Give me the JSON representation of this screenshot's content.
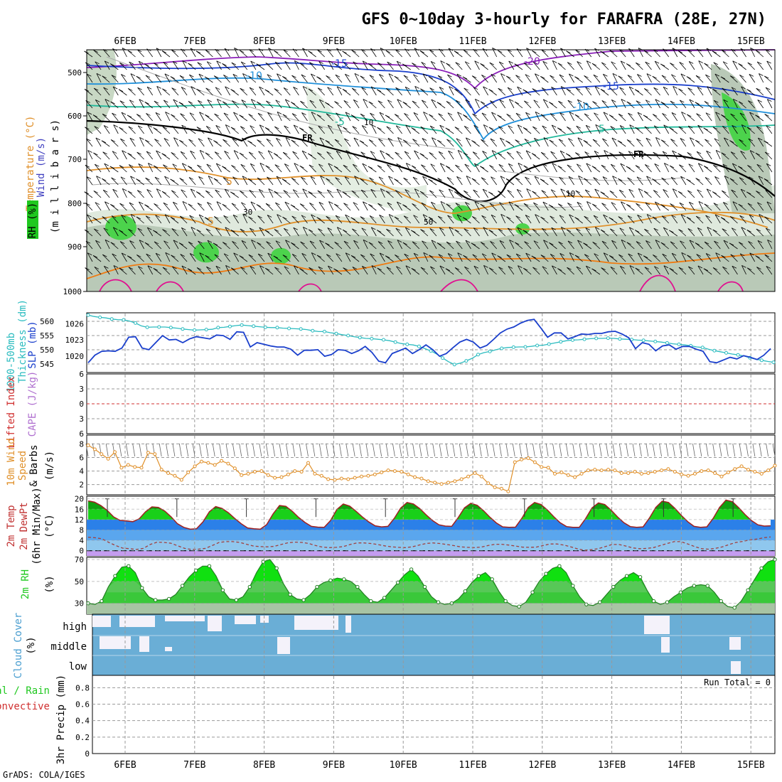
{
  "title": "GFS 0~10day 3-hourly for FARAFRA (28E, 27N)",
  "footer": "GrADS: COLA/IGES",
  "dates": [
    "6FEB",
    "7FEB",
    "8FEB",
    "9FEB",
    "10FEB",
    "11FEB",
    "12FEB",
    "13FEB",
    "14FEB",
    "15FEB"
  ],
  "colors": {
    "blue": "#1a3fcc",
    "cyan": "#2cbcc0",
    "orange": "#e0902a",
    "green": "#1fc81f",
    "cloud": "#6aaed6",
    "lightblue": "#8fc7ee",
    "midblue": "#2b80e8",
    "lavender": "#c49cf0"
  },
  "panels": {
    "upper": {
      "y_label_mb": "(m i l l i b a r s)",
      "y_label_wind": "Wind (m/s)",
      "y_label_temp": "Temperature (°C)",
      "y_label_rh": "RH (%)",
      "levels": [
        "500",
        "600",
        "700",
        "800",
        "900",
        "1000"
      ],
      "contour_labels": {
        "m15": "-15",
        "m10": "-10",
        "m5": "-5",
        "m20": "-20",
        "p5": "5",
        "fr": "FR",
        "rh10": "10",
        "rh30": "30",
        "rh50": "50"
      }
    },
    "slp": {
      "label_a": "1000-500mb",
      "label_b": "Thickness (dm)",
      "label_c": "SLP (mb)",
      "thick_ticks": [
        "560",
        "555",
        "550",
        "545"
      ],
      "slp_ticks": [
        "1026",
        "1023",
        "1020"
      ]
    },
    "cape": {
      "label_a": "Lifted Index",
      "label_b": "CAPE (J/kg)",
      "ticks": [
        "6",
        "3",
        "0",
        "3",
        "6"
      ]
    },
    "wind10": {
      "label_a": "10m Wind",
      "label_b": "Speed",
      "label_c": "& Barbs",
      "label_d": "(m/s)",
      "ticks": [
        "8",
        "6",
        "4",
        "2"
      ]
    },
    "temp": {
      "label_a": "2m Temp",
      "label_b": "2m DewPt",
      "label_c": "(6hr Min/Max)",
      "label_d": "(°C)",
      "ticks": [
        "20",
        "16",
        "12",
        "8",
        "4",
        "0"
      ]
    },
    "rh": {
      "label_a": "2m RH",
      "label_b": "(%)",
      "ticks": [
        "70",
        "50",
        "30"
      ]
    },
    "cloud": {
      "label_a": "Cloud Cover",
      "label_b": "(%)",
      "rows": [
        "high",
        "middle",
        "low"
      ]
    },
    "precip": {
      "label_a": "Total / Rain",
      "label_b": "Convective",
      "label_c": "3hr Precip (mm)",
      "run_total": "Run Total = 0",
      "ticks": [
        "0.8",
        "0.6",
        "0.4",
        "0.2",
        "0"
      ]
    }
  },
  "chart_data": {
    "type": "line",
    "x_unit": "3-hourly steps from 5FEB 12Z",
    "slp_mb": [
      1018.8,
      1020.2,
      1020.9,
      1021.0,
      1020.9,
      1021.5,
      1023.5,
      1023.6,
      1021.5,
      1021.2,
      1022.5,
      1023.8,
      1023.0,
      1023.1,
      1022.5,
      1023.2,
      1023.6,
      1023.4,
      1023.2,
      1023.9,
      1023.8,
      1023.1,
      1024.5,
      1024.4,
      1021.7,
      1022.5,
      1022.2,
      1021.9,
      1021.7,
      1021.7,
      1021.3,
      1020.2,
      1021.1,
      1021.1,
      1021.2,
      1020.0,
      1020.3,
      1021.2,
      1021.1,
      1020.5,
      1021.0,
      1021.8,
      1020.7,
      1019.1,
      1018.8,
      1020.5,
      1021.0,
      1021.5,
      1020.5,
      1021.2,
      1022.1,
      1021.2,
      1020.0,
      1020.5,
      1021.6,
      1022.6,
      1023.1,
      1022.6,
      1021.5,
      1022.0,
      1023.1,
      1024.3,
      1025.0,
      1025.4,
      1026.1,
      1026.6,
      1026.8,
      1025.2,
      1023.5,
      1024.3,
      1024.3,
      1023.2,
      1023.6,
      1024.1,
      1024.0,
      1024.2,
      1024.2,
      1024.5,
      1024.6,
      1024.1,
      1023.4,
      1021.4,
      1022.5,
      1022.2,
      1021.0,
      1021.9,
      1022.1,
      1021.3,
      1021.8,
      1021.8,
      1021.3,
      1020.9,
      1019.0,
      1018.8,
      1019.3,
      1019.8,
      1019.5,
      1020.1,
      1019.8,
      1019.4,
      1020.2,
      1021.4
    ],
    "thickness_dm": [
      562.2,
      561.7,
      561.4,
      561.2,
      560.8,
      560.6,
      560.5,
      560.1,
      559.4,
      558.4,
      557.9,
      558.0,
      558.0,
      558.0,
      557.8,
      557.6,
      557.3,
      557.1,
      556.9,
      557.0,
      557.1,
      557.2,
      557.8,
      557.9,
      558.2,
      558.5,
      558.7,
      558.5,
      558.3,
      558.1,
      557.9,
      557.8,
      557.8,
      557.6,
      557.5,
      557.4,
      557.3,
      557.1,
      556.7,
      556.4,
      556.4,
      556.0,
      555.7,
      555.3,
      555.0,
      554.6,
      554.3,
      554.0,
      553.9,
      553.7,
      553.5,
      553.2,
      552.7,
      552.2,
      551.9,
      551.7,
      551.2,
      550.4,
      549.6,
      548.5,
      547.1,
      545.8,
      544.8,
      545.3,
      546.1,
      547.0,
      548.3,
      549.0,
      549.4,
      550.0,
      550.5,
      550.8,
      550.9,
      551.0,
      551.0,
      551.2,
      551.5,
      551.6,
      552.0,
      552.4,
      552.8,
      553.2,
      553.4,
      553.5,
      553.7,
      553.9,
      554.0,
      554.0,
      554.1,
      554.0,
      553.8,
      553.7,
      553.6,
      553.4,
      553.3,
      553.1,
      552.9,
      552.7,
      552.4,
      552.1,
      551.9,
      551.7,
      551.4,
      551.0,
      550.8,
      550.2,
      549.7,
      549.3,
      548.9,
      548.5,
      548.2,
      547.8,
      547.2,
      546.7,
      546.3,
      545.9,
      545.6
    ],
    "wind10_ms": [
      7.8,
      7.2,
      6.5,
      5.8,
      6.8,
      4.5,
      4.9,
      4.6,
      4.5,
      6.7,
      6.5,
      4.2,
      3.7,
      3.3,
      2.7,
      3.8,
      4.7,
      5.4,
      5.2,
      4.9,
      5.5,
      5.1,
      4.4,
      3.4,
      3.6,
      3.9,
      4.0,
      3.4,
      3.0,
      3.1,
      3.5,
      4.0,
      3.9,
      5.2,
      3.6,
      3.3,
      2.8,
      2.7,
      2.9,
      2.8,
      3.0,
      3.2,
      3.3,
      3.5,
      3.8,
      4.1,
      4.0,
      3.9,
      3.5,
      3.1,
      2.9,
      2.5,
      2.3,
      2.1,
      2.3,
      2.5,
      2.8,
      3.2,
      3.7,
      3.2,
      2.2,
      1.6,
      1.4,
      1.0,
      5.3,
      5.7,
      5.9,
      5.3,
      4.6,
      4.5,
      3.6,
      3.8,
      3.4,
      3.1,
      3.6,
      4.1,
      4.2,
      4.1,
      4.2,
      4.1,
      3.7,
      3.7,
      3.9,
      3.6,
      3.7,
      3.9,
      4.1,
      4.3,
      3.9,
      3.5,
      3.3,
      3.6,
      4.0,
      4.1,
      3.7,
      3.2,
      3.8,
      4.3,
      4.7,
      4.2,
      3.9,
      3.6,
      4.1,
      4.8
    ],
    "temp2m_c": [
      19.2,
      18.7,
      17.4,
      15.5,
      13.0,
      11.7,
      11.5,
      11.2,
      12.3,
      15.0,
      16.9,
      16.7,
      15.3,
      13.1,
      10.4,
      9.0,
      8.3,
      8.5,
      11.1,
      15.0,
      17.0,
      16.3,
      14.6,
      12.4,
      10.4,
      8.8,
      8.5,
      8.3,
      10.1,
      14.2,
      17.4,
      17.1,
      15.2,
      12.8,
      10.9,
      9.4,
      9.1,
      9.0,
      11.6,
      15.9,
      18.0,
      17.2,
      15.2,
      13.0,
      11.1,
      9.6,
      9.2,
      9.4,
      12.5,
      16.4,
      18.6,
      18.0,
      16.2,
      13.8,
      11.6,
      10.0,
      9.5,
      9.4,
      12.7,
      16.5,
      18.3,
      17.5,
      15.4,
      12.9,
      10.7,
      9.2,
      9.0,
      9.1,
      12.5,
      16.7,
      18.6,
      17.8,
      15.7,
      13.1,
      10.8,
      9.3,
      9.0,
      9.0,
      12.4,
      16.5,
      18.4,
      17.8,
      15.6,
      13.0,
      10.8,
      9.3,
      9.0,
      9.2,
      12.6,
      16.7,
      19.1,
      18.6,
      16.3,
      13.6,
      11.2,
      9.4,
      9.0,
      9.2,
      12.5,
      16.7,
      19.5,
      18.9,
      16.6,
      13.9,
      11.6,
      10.0,
      9.5,
      9.6
    ],
    "dewpt2m_c": [
      5.2,
      5.0,
      4.6,
      3.2,
      2.0,
      1.0,
      0.8,
      0.5,
      0.9,
      2.4,
      3.3,
      3.2,
      2.9,
      1.9,
      0.9,
      0.5,
      0.6,
      0.9,
      2.0,
      3.2,
      3.5,
      3.5,
      3.2,
      2.5,
      1.8,
      1.6,
      1.5,
      1.7,
      2.4,
      3.1,
      3.3,
      3.2,
      2.8,
      2.0,
      1.4,
      1.2,
      1.3,
      1.6,
      2.4,
      3.0,
      3.0,
      2.8,
      2.4,
      1.9,
      1.5,
      1.3,
      1.2,
      1.5,
      2.2,
      2.8,
      3.0,
      2.8,
      2.4,
      2.0,
      1.5,
      1.3,
      1.2,
      1.4,
      2.0,
      2.5,
      2.5,
      2.2,
      1.8,
      1.4,
      1.3,
      1.4,
      2.0,
      2.6,
      2.6,
      2.2,
      1.5,
      0.7,
      0.2,
      0.4,
      0.8,
      1.6,
      2.4,
      2.4,
      1.8,
      1.1,
      0.8,
      0.9,
      1.2,
      2.0,
      2.8,
      3.5,
      3.5,
      2.6,
      1.6,
      0.8,
      0.6,
      0.9,
      1.5,
      2.4,
      3.2,
      3.6,
      4.2,
      4.5,
      5.0,
      5.3
    ],
    "rh2m_pct": [
      30,
      29,
      32,
      45,
      55,
      63,
      64,
      58,
      44,
      36,
      33,
      33,
      34,
      38,
      46,
      54,
      60,
      64,
      64,
      55,
      42,
      34,
      33,
      36,
      45,
      58,
      68,
      70,
      62,
      48,
      38,
      34,
      33,
      38,
      45,
      49,
      51,
      53,
      52,
      50,
      45,
      38,
      32,
      31,
      35,
      42,
      49,
      56,
      61,
      55,
      45,
      36,
      31,
      29,
      30,
      34,
      41,
      49,
      55,
      58,
      52,
      41,
      32,
      28,
      27,
      31,
      40,
      50,
      57,
      62,
      64,
      58,
      46,
      36,
      29,
      28,
      31,
      38,
      45,
      51,
      55,
      58,
      54,
      42,
      32,
      29,
      31,
      36,
      40,
      44,
      46,
      47,
      46,
      40,
      32,
      27,
      26,
      32,
      42,
      52,
      62,
      68,
      70
    ]
  }
}
